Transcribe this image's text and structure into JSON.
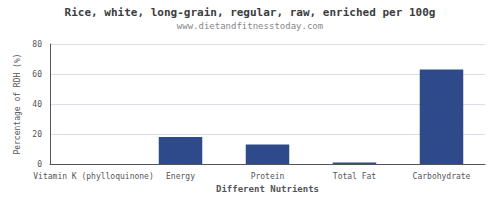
{
  "chart_data": {
    "type": "bar",
    "title": "Rice, white, long-grain, regular, raw, enriched per 100g",
    "subtitle": "www.dietandfitnesstoday.com",
    "xlabel": "Different Nutrients",
    "ylabel": "Percentage of RDH (%)",
    "categories": [
      "Vitamin K (phylloquinone)",
      "Energy",
      "Protein",
      "Total Fat",
      "Carbohydrate"
    ],
    "values": [
      0,
      18,
      13,
      1,
      63
    ],
    "color": "#2e4a8a",
    "ylim": [
      0,
      80
    ],
    "yticks": [
      0,
      20,
      40,
      60,
      80
    ],
    "grid": true
  }
}
